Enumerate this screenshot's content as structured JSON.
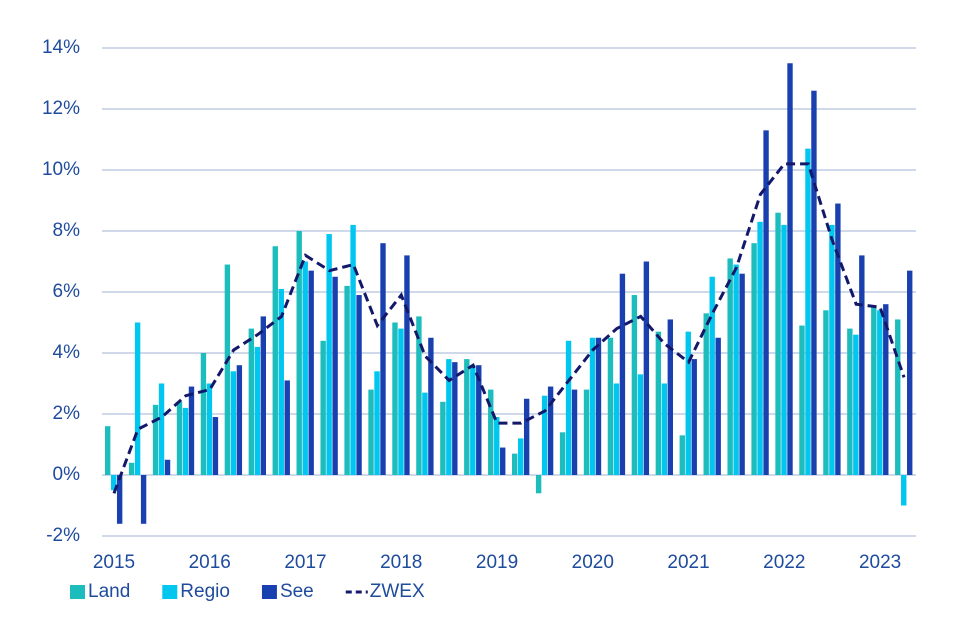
{
  "chart_data": {
    "type": "bar",
    "categories": [
      "2015",
      null,
      null,
      null,
      "2016",
      null,
      null,
      null,
      "2017",
      null,
      null,
      null,
      "2018",
      null,
      null,
      null,
      "2019",
      null,
      null,
      null,
      "2020",
      null,
      null,
      null,
      "2021",
      null,
      null,
      null,
      "2022",
      null,
      null,
      null,
      "2023",
      null
    ],
    "series": [
      {
        "name": "Land",
        "color": "#1dbdbd",
        "values": [
          1.6,
          0.4,
          2.3,
          2.4,
          4.0,
          6.9,
          4.8,
          7.5,
          8.0,
          4.4,
          6.2,
          2.8,
          5.0,
          5.2,
          2.4,
          3.8,
          2.8,
          0.7,
          -0.6,
          1.4,
          2.8,
          4.5,
          5.9,
          4.7,
          1.3,
          5.3,
          7.1,
          7.6,
          8.6,
          4.9,
          5.4,
          4.8,
          5.5,
          5.1
        ]
      },
      {
        "name": "Regio",
        "color": "#00c6f0",
        "values": [
          -0.5,
          5.0,
          3.0,
          2.2,
          3.0,
          3.4,
          4.2,
          6.1,
          7.0,
          7.9,
          8.2,
          3.4,
          4.8,
          2.7,
          3.8,
          3.6,
          1.9,
          1.2,
          2.6,
          4.4,
          4.5,
          3.0,
          3.3,
          3.0,
          4.7,
          6.5,
          6.9,
          8.3,
          8.2,
          10.7,
          8.2,
          4.6,
          5.4,
          -1.0
        ]
      },
      {
        "name": "See",
        "color": "#1a40b0",
        "values": [
          -1.6,
          -1.6,
          0.5,
          2.9,
          1.9,
          3.6,
          5.2,
          3.1,
          6.7,
          6.5,
          5.9,
          7.6,
          7.2,
          4.5,
          3.7,
          3.6,
          0.9,
          2.5,
          2.9,
          2.8,
          4.5,
          6.6,
          7.0,
          5.1,
          3.8,
          4.5,
          6.6,
          11.3,
          13.5,
          12.6,
          8.9,
          7.2,
          5.6,
          6.7
        ]
      },
      {
        "name": "ZWEX",
        "type": "line",
        "color": "#14186a",
        "values": [
          -0.6,
          1.5,
          1.9,
          2.6,
          2.8,
          4.1,
          4.6,
          5.2,
          7.2,
          6.7,
          6.9,
          4.9,
          5.9,
          3.9,
          3.1,
          3.6,
          1.7,
          1.7,
          2.1,
          3.1,
          4.1,
          4.8,
          5.2,
          4.3,
          3.7,
          5.3,
          6.8,
          9.2,
          10.2,
          10.2,
          7.7,
          5.6,
          5.5,
          3.2
        ]
      }
    ],
    "ylim": [
      -2,
      14
    ],
    "yticks": [
      {
        "value": -2,
        "label": "-2%"
      },
      {
        "value": 0,
        "label": "0%"
      },
      {
        "value": 2,
        "label": "2%"
      },
      {
        "value": 4,
        "label": "4%"
      },
      {
        "value": 6,
        "label": "6%"
      },
      {
        "value": 8,
        "label": "8%"
      },
      {
        "value": 10,
        "label": "10%"
      },
      {
        "value": 12,
        "label": "12%"
      },
      {
        "value": 14,
        "label": "14%"
      }
    ],
    "grid": true,
    "legend": "bottom"
  }
}
